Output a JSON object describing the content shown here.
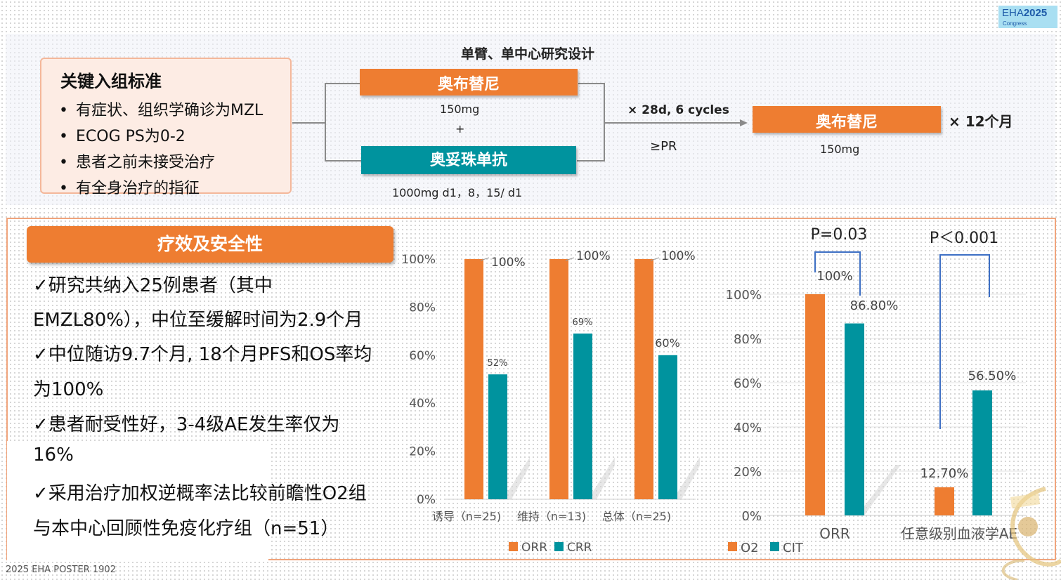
{
  "logo": {
    "main": "EHA",
    "year": "2025",
    "sub": "Congress"
  },
  "criteria": {
    "title": "关键入组标准",
    "bullet": "•",
    "items": [
      "有症状、组织学确诊为MZL",
      "ECOG PS为0-2",
      "患者之前未接受治疗",
      "有全身治疗的指征"
    ]
  },
  "design": {
    "title": "单臂、单中心研究设计",
    "drug1": "奥布替尼",
    "drug1_dose": "150mg",
    "plus": "+",
    "drug2": "奥妥珠单抗",
    "drug2_dose": "1000mg d1，8，15/ d1",
    "cycles": "× 28d, 6 cycles",
    "condition": "≥PR",
    "maint_drug": "奥布替尼",
    "maint_dose": "150mg",
    "maint_duration": "× 12个月"
  },
  "efficacy": {
    "banner": "疗效及安全性",
    "lines": [
      "✓研究共纳入25例患者（其中",
      "EMZL80%），中位至缓解时间为2.9个月",
      "✓中位随访9.7个月, 18个月PFS和OS率均",
      "为100%",
      "✓患者耐受性好，3-4级AE发生率仅为",
      "16%",
      "✓采用治疗加权逆概率法比较前瞻性O2组",
      "与本中心回顾性免疫化疗组（n=51）"
    ]
  },
  "colors": {
    "orange": "#ee7d31",
    "teal": "#00939e",
    "bracket": "#3d6fc4"
  },
  "chart_data": [
    {
      "type": "bar",
      "categories": [
        "诱导（n=25)",
        "维持（n=13)",
        "总体（n=25)"
      ],
      "series": [
        {
          "name": "ORR",
          "values": [
            100,
            100,
            100
          ],
          "labels": [
            "100%",
            "100%",
            "100%"
          ]
        },
        {
          "name": "CRR",
          "values": [
            52,
            69,
            60
          ],
          "labels": [
            "52%",
            "69%",
            "60%"
          ]
        }
      ],
      "ylim": [
        0,
        100
      ],
      "yticks": [
        "0%",
        "20%",
        "40%",
        "60%",
        "80%",
        "100%"
      ],
      "legend": "bottom"
    },
    {
      "type": "bar",
      "categories": [
        "ORR",
        "任意级别血液学AE"
      ],
      "series": [
        {
          "name": "O2",
          "values": [
            100,
            12.7
          ],
          "labels": [
            "100%",
            "12.70%"
          ]
        },
        {
          "name": "CIT",
          "values": [
            86.8,
            56.5
          ],
          "labels": [
            "86.80%",
            "56.50%"
          ]
        }
      ],
      "ylim": [
        0,
        100
      ],
      "yticks": [
        "0%",
        "20%",
        "40%",
        "60%",
        "80%",
        "100%"
      ],
      "pvalues": [
        "P=0.03",
        "P＜0.001"
      ],
      "legend": "bottom"
    }
  ],
  "footer": "2025 EHA POSTER 1902"
}
